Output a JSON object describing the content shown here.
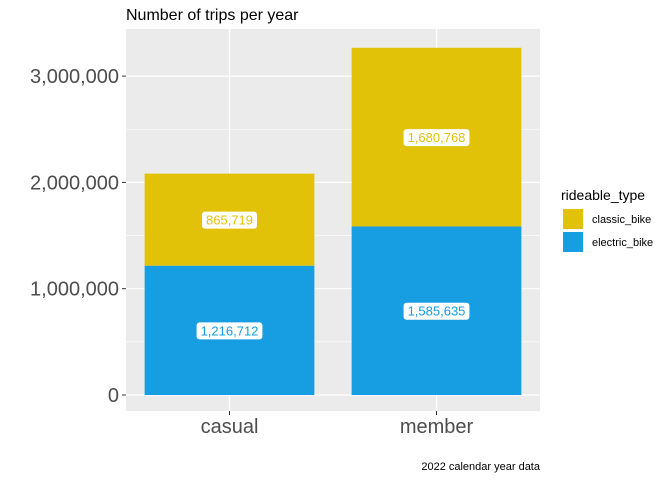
{
  "chart_data": {
    "type": "bar",
    "stacked": true,
    "title": "Number of trips per year",
    "caption": "2022 calendar year data",
    "categories": [
      "casual",
      "member"
    ],
    "series": [
      {
        "name": "electric_bike",
        "color": "#169DE2",
        "values": [
          1216712,
          1585635
        ],
        "labels": [
          "1,216,712",
          "1,585,635"
        ]
      },
      {
        "name": "classic_bike",
        "color": "#E1C208",
        "values": [
          865719,
          1680768
        ],
        "labels": [
          "865,719",
          "1,680,768"
        ]
      }
    ],
    "legend": {
      "title": "rideable_type",
      "position": "right",
      "items": [
        "classic_bike",
        "electric_bike"
      ]
    },
    "ylim": [
      0,
      3400000
    ],
    "yticks": [
      0,
      1000000,
      2000000,
      3000000
    ],
    "ytick_labels": [
      "0",
      "1,000,000",
      "2,000,000",
      "3,000,000"
    ],
    "grid": true,
    "panel_background": "#EBEBEB"
  }
}
